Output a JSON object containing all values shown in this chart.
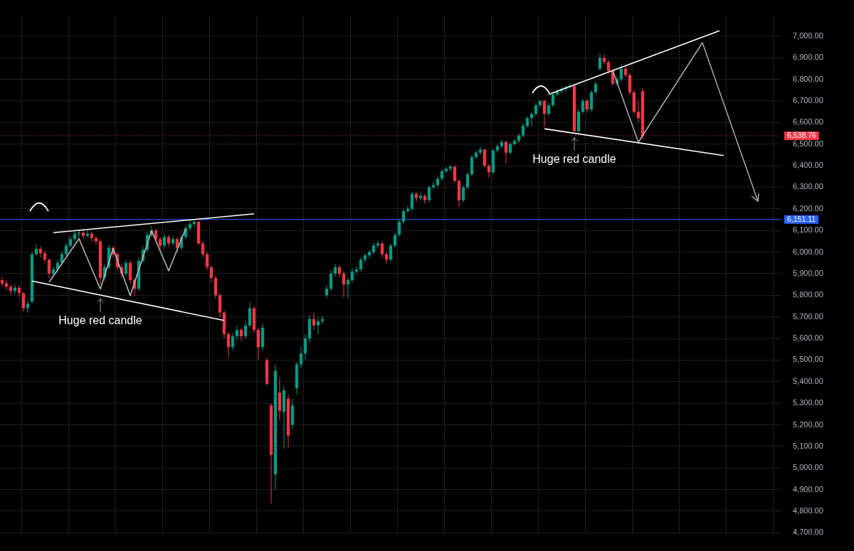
{
  "chart_data": {
    "type": "candlestick",
    "categories": [
      null,
      null,
      null,
      null,
      null,
      null,
      null,
      null,
      null,
      null,
      null,
      null,
      null,
      null,
      null,
      null,
      null,
      null,
      null,
      null,
      null,
      null,
      null,
      null,
      null,
      null,
      null,
      null,
      null,
      null,
      null,
      null,
      null,
      null,
      null,
      null,
      null,
      null,
      null,
      null,
      null,
      null,
      null,
      null,
      null,
      null,
      null,
      null,
      null,
      null,
      null,
      null,
      null,
      null,
      null,
      null,
      null,
      null,
      null,
      null,
      null,
      null,
      null,
      null,
      null,
      null,
      null,
      null,
      null,
      null,
      null,
      null,
      null,
      null,
      null,
      null,
      null,
      null,
      null,
      null,
      null,
      null,
      null,
      null,
      null,
      null,
      null,
      null,
      null,
      null,
      null,
      null,
      null,
      null,
      null,
      null,
      null,
      null,
      null,
      null,
      null,
      null,
      null,
      null,
      null,
      null,
      null,
      null,
      null,
      null,
      null,
      null,
      null,
      null,
      null,
      null,
      null,
      null,
      null,
      null,
      null,
      null,
      null,
      null,
      null,
      null,
      null,
      null,
      null,
      null,
      null,
      null,
      null,
      null,
      null,
      null,
      null,
      null,
      null,
      null,
      null,
      null,
      null,
      null,
      null,
      null,
      null,
      null,
      null,
      null,
      null,
      null,
      null,
      null,
      null,
      null,
      null,
      null,
      null,
      null,
      null,
      null,
      null,
      null,
      null,
      null,
      null,
      null,
      null,
      null,
      null,
      null,
      null,
      null,
      null,
      null,
      null,
      null,
      null,
      null,
      null,
      null,
      null
    ],
    "ohlc": [
      [
        5870,
        5885,
        5840,
        5855
      ],
      [
        5855,
        5870,
        5825,
        5840
      ],
      [
        5840,
        5850,
        5800,
        5820
      ],
      [
        5820,
        5850,
        5805,
        5835
      ],
      [
        5835,
        5845,
        5790,
        5810
      ],
      [
        5810,
        5815,
        5725,
        5740
      ],
      [
        5740,
        5775,
        5720,
        5760
      ],
      [
        5770,
        6000,
        5765,
        5990
      ],
      [
        5990,
        6035,
        5980,
        6015
      ],
      [
        6015,
        6025,
        5975,
        5995
      ],
      [
        5995,
        6005,
        5950,
        5965
      ],
      [
        5965,
        5970,
        5880,
        5900
      ],
      [
        5900,
        5935,
        5885,
        5920
      ],
      [
        5920,
        5965,
        5905,
        5950
      ],
      [
        5950,
        6005,
        5940,
        5990
      ],
      [
        5990,
        6045,
        5980,
        6030
      ],
      [
        6030,
        6075,
        6020,
        6060
      ],
      [
        6060,
        6100,
        6050,
        6085
      ],
      [
        6085,
        6105,
        6065,
        6090
      ],
      [
        6090,
        6100,
        6060,
        6075
      ],
      [
        6075,
        6100,
        6065,
        6085
      ],
      [
        6085,
        6095,
        6050,
        6065
      ],
      [
        6065,
        6075,
        6035,
        6050
      ],
      [
        6050,
        6060,
        5850,
        5880
      ],
      [
        5880,
        5945,
        5865,
        5930
      ],
      [
        5930,
        6035,
        5920,
        6020
      ],
      [
        6020,
        6030,
        5975,
        5990
      ],
      [
        5990,
        6000,
        5915,
        5930
      ],
      [
        5930,
        5945,
        5880,
        5900
      ],
      [
        5900,
        5965,
        5890,
        5950
      ],
      [
        5950,
        5960,
        5855,
        5870
      ],
      [
        5870,
        5880,
        5795,
        5830
      ],
      [
        5830,
        5975,
        5820,
        5960
      ],
      [
        5960,
        6025,
        5950,
        6010
      ],
      [
        6010,
        6095,
        6000,
        6080
      ],
      [
        6080,
        6120,
        6070,
        6100
      ],
      [
        6100,
        6110,
        6045,
        6060
      ],
      [
        6060,
        6070,
        6010,
        6030
      ],
      [
        6030,
        6085,
        6020,
        6070
      ],
      [
        6070,
        6080,
        6025,
        6040
      ],
      [
        6040,
        6075,
        6030,
        6060
      ],
      [
        6060,
        6070,
        6000,
        6020
      ],
      [
        6020,
        6085,
        6010,
        6070
      ],
      [
        6070,
        6125,
        6060,
        6110
      ],
      [
        6110,
        6145,
        6100,
        6130
      ],
      [
        6130,
        6151,
        6115,
        6140
      ],
      [
        6140,
        6145,
        6030,
        6040
      ],
      [
        6040,
        6050,
        5975,
        5990
      ],
      [
        5990,
        6000,
        5915,
        5930
      ],
      [
        5930,
        5940,
        5860,
        5880
      ],
      [
        5880,
        5890,
        5785,
        5800
      ],
      [
        5800,
        5810,
        5700,
        5720
      ],
      [
        5720,
        5730,
        5600,
        5620
      ],
      [
        5620,
        5630,
        5510,
        5560
      ],
      [
        5560,
        5625,
        5545,
        5610
      ],
      [
        5610,
        5660,
        5595,
        5640
      ],
      [
        5640,
        5650,
        5590,
        5610
      ],
      [
        5610,
        5680,
        5600,
        5660
      ],
      [
        5660,
        5770,
        5650,
        5740
      ],
      [
        5740,
        5750,
        5625,
        5640
      ],
      [
        5640,
        5650,
        5500,
        5560
      ],
      [
        5560,
        5670,
        5545,
        5650
      ],
      [
        5500,
        5510,
        5380,
        5390
      ],
      [
        5290,
        5300,
        4835,
        5060
      ],
      [
        4970,
        5480,
        4900,
        5450
      ],
      [
        5350,
        5420,
        5220,
        5265
      ],
      [
        5260,
        5380,
        5090,
        5360
      ],
      [
        5320,
        5340,
        5095,
        5150
      ],
      [
        5200,
        5320,
        5180,
        5290
      ],
      [
        5370,
        5490,
        5340,
        5480
      ],
      [
        5480,
        5560,
        5460,
        5530
      ],
      [
        5530,
        5620,
        5500,
        5600
      ],
      [
        5600,
        5710,
        5580,
        5690
      ],
      [
        5690,
        5720,
        5640,
        5660
      ],
      [
        5660,
        5700,
        5620,
        5680
      ],
      [
        5680,
        5705,
        5665,
        5690
      ],
      [
        5800,
        5845,
        5790,
        5830
      ],
      [
        5830,
        5915,
        5820,
        5900
      ],
      [
        5900,
        5945,
        5885,
        5930
      ],
      [
        5930,
        5940,
        5885,
        5900
      ],
      [
        5900,
        5910,
        5790,
        5850
      ],
      [
        5850,
        5880,
        5785,
        5870
      ],
      [
        5870,
        5925,
        5860,
        5910
      ],
      [
        5910,
        5935,
        5895,
        5920
      ],
      [
        5920,
        5975,
        5910,
        5965
      ],
      [
        5965,
        5995,
        5950,
        5985
      ],
      [
        5985,
        6010,
        5970,
        6000
      ],
      [
        6000,
        6045,
        5990,
        6030
      ],
      [
        6030,
        6055,
        6020,
        6040
      ],
      [
        6040,
        6050,
        5975,
        5990
      ],
      [
        5990,
        6000,
        5945,
        5965
      ],
      [
        5965,
        6040,
        5955,
        6030
      ],
      [
        6030,
        6090,
        6020,
        6080
      ],
      [
        6080,
        6150,
        6070,
        6140
      ],
      [
        6140,
        6200,
        6130,
        6190
      ],
      [
        6190,
        6215,
        6180,
        6200
      ],
      [
        6200,
        6280,
        6190,
        6270
      ],
      [
        6270,
        6280,
        6235,
        6250
      ],
      [
        6250,
        6275,
        6240,
        6260
      ],
      [
        6260,
        6270,
        6225,
        6240
      ],
      [
        6240,
        6310,
        6230,
        6300
      ],
      [
        6300,
        6325,
        6290,
        6310
      ],
      [
        6310,
        6350,
        6300,
        6340
      ],
      [
        6340,
        6385,
        6330,
        6375
      ],
      [
        6375,
        6395,
        6365,
        6385
      ],
      [
        6385,
        6405,
        6375,
        6395
      ],
      [
        6395,
        6400,
        6320,
        6330
      ],
      [
        6330,
        6335,
        6210,
        6240
      ],
      [
        6240,
        6310,
        6230,
        6300
      ],
      [
        6300,
        6370,
        6290,
        6360
      ],
      [
        6360,
        6450,
        6350,
        6440
      ],
      [
        6440,
        6470,
        6430,
        6460
      ],
      [
        6460,
        6490,
        6450,
        6475
      ],
      [
        6475,
        6480,
        6390,
        6400
      ],
      [
        6400,
        6410,
        6345,
        6370
      ],
      [
        6370,
        6480,
        6360,
        6470
      ],
      [
        6470,
        6500,
        6460,
        6490
      ],
      [
        6490,
        6520,
        6480,
        6510
      ],
      [
        6510,
        6515,
        6410,
        6460
      ],
      [
        6460,
        6510,
        6450,
        6500
      ],
      [
        6500,
        6525,
        6490,
        6515
      ],
      [
        6515,
        6550,
        6505,
        6540
      ],
      [
        6540,
        6595,
        6530,
        6585
      ],
      [
        6585,
        6630,
        6575,
        6620
      ],
      [
        6620,
        6650,
        6580,
        6640
      ],
      [
        6640,
        6690,
        6630,
        6680
      ],
      [
        6680,
        6705,
        6670,
        6700
      ],
      [
        6700,
        6705,
        6580,
        6640
      ],
      [
        6640,
        6690,
        6630,
        6680
      ],
      [
        6680,
        6740,
        6670,
        6730
      ],
      [
        6730,
        6755,
        6720,
        6745
      ],
      [
        6745,
        6765,
        6735,
        6755
      ],
      [
        6755,
        6770,
        6745,
        6765
      ],
      [
        6765,
        6780,
        6755,
        6770
      ],
      [
        6770,
        6775,
        6550,
        6560
      ],
      [
        6560,
        6665,
        6550,
        6650
      ],
      [
        6650,
        6710,
        6640,
        6700
      ],
      [
        6700,
        6710,
        6645,
        6660
      ],
      [
        6660,
        6750,
        6650,
        6740
      ],
      [
        6740,
        6790,
        6730,
        6780
      ],
      [
        6850,
        6920,
        6840,
        6900
      ],
      [
        6900,
        6915,
        6870,
        6880
      ],
      [
        6880,
        6890,
        6830,
        6840
      ],
      [
        6840,
        6850,
        6770,
        6780
      ],
      [
        6780,
        6815,
        6770,
        6800
      ],
      [
        6800,
        6870,
        6790,
        6850
      ],
      [
        6850,
        6860,
        6810,
        6820
      ],
      [
        6820,
        6830,
        6730,
        6740
      ],
      [
        6740,
        6750,
        6640,
        6650
      ],
      [
        6650,
        6700,
        6600,
        6620
      ],
      [
        6745,
        6760,
        6520,
        6538.76
      ],
      null,
      null,
      null,
      null,
      null,
      null,
      null,
      null,
      null,
      null,
      null,
      null,
      null,
      null,
      null,
      null,
      null,
      null,
      null,
      null,
      null,
      null,
      null,
      null,
      null,
      null,
      null,
      null,
      null,
      null,
      null,
      null
    ],
    "series": [
      {
        "type": "line",
        "color": "#ffffff",
        "values": [
          null,
          null,
          null,
          null,
          null,
          null,
          null,
          null,
          null,
          null,
          null,
          null,
          6090,
          null,
          null,
          null,
          null,
          null,
          null,
          null,
          null,
          null,
          null,
          null,
          null,
          null,
          null,
          null,
          null,
          null,
          null,
          null,
          null,
          null,
          null,
          null,
          null,
          null,
          null,
          null,
          null,
          null,
          null,
          null,
          null,
          null,
          null,
          null,
          null,
          null,
          null,
          null,
          null,
          null,
          null,
          null,
          null,
          null,
          null,
          6177,
          null,
          null,
          null,
          null,
          null,
          null,
          null,
          null,
          null,
          null,
          null,
          null,
          null,
          null,
          null,
          null,
          null,
          null,
          null,
          null,
          null,
          null,
          null,
          null,
          null,
          null,
          null,
          null,
          null,
          null,
          null,
          null,
          null,
          null,
          null,
          null,
          null,
          null,
          null,
          null,
          null,
          null,
          null,
          null,
          null,
          null,
          null,
          null,
          null,
          null,
          null,
          null,
          null,
          null,
          null,
          null,
          null,
          null,
          null,
          null,
          null,
          null,
          null,
          null,
          null,
          null,
          null,
          null,
          null,
          null,
          null,
          null,
          null,
          null,
          null,
          null,
          null,
          null,
          null,
          null,
          null,
          null,
          null,
          null,
          null,
          null,
          null,
          null,
          null,
          null,
          null,
          null,
          null,
          null,
          null,
          null,
          null,
          null,
          null,
          null,
          null,
          null,
          null,
          null,
          null,
          null,
          null,
          null,
          null,
          null,
          null,
          null,
          null,
          null,
          null,
          null,
          null,
          null,
          null,
          null,
          null,
          null,
          null
        ]
      },
      {
        "type": "line",
        "color": "#ffffff",
        "values": [
          null,
          null,
          null,
          null,
          null,
          null,
          null,
          5866,
          null,
          null,
          null,
          null,
          null,
          null,
          null,
          null,
          null,
          null,
          null,
          null,
          null,
          null,
          null,
          null,
          null,
          null,
          null,
          null,
          null,
          null,
          null,
          null,
          null,
          null,
          null,
          null,
          null,
          null,
          null,
          null,
          null,
          null,
          null,
          null,
          null,
          null,
          null,
          null,
          null,
          null,
          null,
          null,
          5683,
          null,
          null,
          null,
          null,
          null,
          null,
          null,
          null,
          null,
          null,
          null,
          null,
          null,
          null,
          null,
          null,
          null,
          null,
          null,
          null,
          null,
          null,
          null,
          null,
          null,
          null,
          null,
          null,
          null,
          null,
          null,
          null,
          null,
          null,
          null,
          null,
          null,
          null,
          null,
          null,
          null,
          null,
          null,
          null,
          null,
          null,
          null,
          null,
          null,
          null,
          null,
          null,
          null,
          null,
          null,
          null,
          null,
          null,
          null,
          null,
          null,
          null,
          null,
          null,
          null,
          null,
          null,
          null,
          null,
          null,
          null,
          null,
          null,
          null,
          null,
          null,
          null,
          null,
          null,
          null,
          null,
          null,
          null,
          null,
          null,
          null,
          null,
          null,
          null,
          null,
          null,
          null,
          null,
          null,
          null,
          null,
          null,
          null,
          null,
          null,
          null,
          null,
          null,
          null,
          null,
          null,
          null,
          null,
          null,
          null,
          null,
          null,
          null,
          null,
          null,
          null,
          null,
          null,
          null,
          null,
          null,
          null,
          null,
          null,
          null,
          null,
          null,
          null,
          null,
          null
        ]
      },
      {
        "type": "line",
        "color": "#b4b4b4",
        "values": [
          null,
          null,
          null,
          null,
          null,
          null,
          null,
          null,
          null,
          null,
          null,
          5860,
          null,
          null,
          null,
          null,
          null,
          null,
          6062,
          null,
          null,
          null,
          null,
          5829,
          null,
          null,
          6016,
          null,
          null,
          null,
          5798,
          null,
          null,
          null,
          null,
          6099,
          null,
          null,
          null,
          5913,
          null,
          null,
          null,
          6109,
          null,
          null,
          null,
          null,
          null,
          null,
          null,
          null,
          null,
          null,
          null,
          null,
          null,
          null,
          null,
          null,
          null,
          null,
          null,
          null,
          null,
          null,
          null,
          null,
          null,
          null,
          null,
          null,
          null,
          null,
          null,
          null,
          null,
          null,
          null,
          null,
          null,
          null,
          null,
          null,
          null,
          null,
          null,
          null,
          null,
          null,
          null,
          null,
          null,
          null,
          null,
          null,
          null,
          null,
          null,
          null,
          null,
          null,
          null,
          null,
          null,
          null,
          null,
          null,
          null,
          null,
          null,
          null,
          null,
          null,
          null,
          null,
          null,
          null,
          null,
          null,
          null,
          null,
          null,
          null,
          null,
          null,
          null,
          null,
          null,
          null,
          null,
          null,
          null,
          null,
          null,
          null,
          null,
          null,
          null,
          null,
          null,
          null,
          null,
          null,
          null,
          null,
          null,
          null,
          null,
          null,
          null,
          null,
          null,
          null,
          null,
          null,
          null,
          null,
          null,
          null,
          null,
          null,
          null,
          null,
          null,
          null,
          null,
          null,
          null,
          null,
          null,
          null,
          null,
          null,
          null,
          null,
          null,
          null,
          null,
          null,
          null,
          null,
          null
        ]
      },
      {
        "type": "line",
        "color": "#ffffff",
        "values": [
          null,
          null,
          null,
          null,
          null,
          null,
          null,
          null,
          null,
          null,
          null,
          null,
          null,
          null,
          null,
          null,
          null,
          null,
          null,
          null,
          null,
          null,
          null,
          null,
          null,
          null,
          null,
          null,
          null,
          null,
          null,
          null,
          null,
          null,
          null,
          null,
          null,
          null,
          null,
          null,
          null,
          null,
          null,
          null,
          null,
          null,
          null,
          null,
          null,
          null,
          null,
          null,
          null,
          null,
          null,
          null,
          null,
          null,
          null,
          null,
          null,
          null,
          null,
          null,
          null,
          null,
          null,
          null,
          null,
          null,
          null,
          null,
          null,
          null,
          null,
          null,
          null,
          null,
          null,
          null,
          null,
          null,
          null,
          null,
          null,
          null,
          null,
          null,
          null,
          null,
          null,
          null,
          null,
          null,
          null,
          null,
          null,
          null,
          null,
          null,
          null,
          null,
          null,
          null,
          null,
          null,
          null,
          null,
          null,
          null,
          null,
          null,
          null,
          null,
          null,
          null,
          null,
          null,
          null,
          null,
          null,
          null,
          null,
          null,
          null,
          null,
          null,
          null,
          6730,
          null,
          null,
          null,
          null,
          null,
          null,
          null,
          null,
          null,
          null,
          null,
          null,
          null,
          null,
          null,
          null,
          null,
          null,
          null,
          null,
          null,
          null,
          null,
          null,
          null,
          null,
          null,
          null,
          null,
          null,
          null,
          null,
          null,
          null,
          null,
          null,
          null,
          null,
          null,
          7025,
          null,
          null,
          null,
          null,
          null,
          null,
          null,
          null,
          null,
          null,
          null,
          null,
          null,
          null
        ]
      },
      {
        "type": "line",
        "color": "#ffffff",
        "values": [
          null,
          null,
          null,
          null,
          null,
          null,
          null,
          null,
          null,
          null,
          null,
          null,
          null,
          null,
          null,
          null,
          null,
          null,
          null,
          null,
          null,
          null,
          null,
          null,
          null,
          null,
          null,
          null,
          null,
          null,
          null,
          null,
          null,
          null,
          null,
          null,
          null,
          null,
          null,
          null,
          null,
          null,
          null,
          null,
          null,
          null,
          null,
          null,
          null,
          null,
          null,
          null,
          null,
          null,
          null,
          null,
          null,
          null,
          null,
          null,
          null,
          null,
          null,
          null,
          null,
          null,
          null,
          null,
          null,
          null,
          null,
          null,
          null,
          null,
          null,
          null,
          null,
          null,
          null,
          null,
          null,
          null,
          null,
          null,
          null,
          null,
          null,
          null,
          null,
          null,
          null,
          null,
          null,
          null,
          null,
          null,
          null,
          null,
          null,
          null,
          null,
          null,
          null,
          null,
          null,
          null,
          null,
          null,
          null,
          null,
          null,
          null,
          null,
          null,
          null,
          null,
          null,
          null,
          null,
          null,
          null,
          null,
          null,
          null,
          null,
          null,
          null,
          6571,
          null,
          null,
          null,
          null,
          null,
          null,
          null,
          null,
          null,
          null,
          null,
          null,
          null,
          null,
          null,
          null,
          null,
          null,
          null,
          null,
          null,
          null,
          null,
          null,
          null,
          null,
          null,
          null,
          null,
          null,
          null,
          null,
          null,
          null,
          null,
          null,
          null,
          null,
          null,
          null,
          null,
          6447,
          null,
          null,
          null,
          null,
          null,
          null,
          null,
          null,
          null,
          null,
          null,
          null,
          null
        ]
      }
    ],
    "ylim": [
      4690,
      7093
    ],
    "yticks": [
      {
        "value": 4700,
        "label": "4,700.00"
      },
      {
        "value": 4800,
        "label": "4,800.00"
      },
      {
        "value": 4900,
        "label": "4,900.00"
      },
      {
        "value": 5000,
        "label": "5,000.00"
      },
      {
        "value": 5100,
        "label": "5,100.00"
      },
      {
        "value": 5200,
        "label": "5,200.00"
      },
      {
        "value": 5300,
        "label": "5,300.00"
      },
      {
        "value": 5400,
        "label": "5,400.00"
      },
      {
        "value": 5500,
        "label": "5,500.00"
      },
      {
        "value": 5600,
        "label": "5,600.00"
      },
      {
        "value": 5700,
        "label": "5,700.00"
      },
      {
        "value": 5800,
        "label": "5,800.00"
      },
      {
        "value": 5900,
        "label": "5,900.00"
      },
      {
        "value": 6000,
        "label": "6,000.00"
      },
      {
        "value": 6100,
        "label": "6,100.00"
      },
      {
        "value": 6200,
        "label": "6,200.00"
      },
      {
        "value": 6300,
        "label": "6,300.00"
      },
      {
        "value": 6400,
        "label": "6,400.00"
      },
      {
        "value": 6500,
        "label": "6,500.00"
      },
      {
        "value": 6600,
        "label": "6,600.00"
      },
      {
        "value": 6700,
        "label": "6,700.00"
      },
      {
        "value": 6800,
        "label": "6,800.00"
      },
      {
        "value": 6900,
        "label": "6,900.00"
      },
      {
        "value": 7000,
        "label": "7,000.00"
      }
    ],
    "ref_lines": [
      {
        "axis": "y",
        "value": 6151.11,
        "label": "6,151.11",
        "color": "#2962ff",
        "line_style": "solid"
      },
      {
        "axis": "y",
        "value": 6538.76,
        "label": "6,538.76",
        "color": "#f23645",
        "line_style": "dotted"
      }
    ],
    "annotations": [
      "Huge red candle",
      "Huge red candle"
    ],
    "grid": true,
    "legend": false,
    "tick_labels": "y"
  }
}
